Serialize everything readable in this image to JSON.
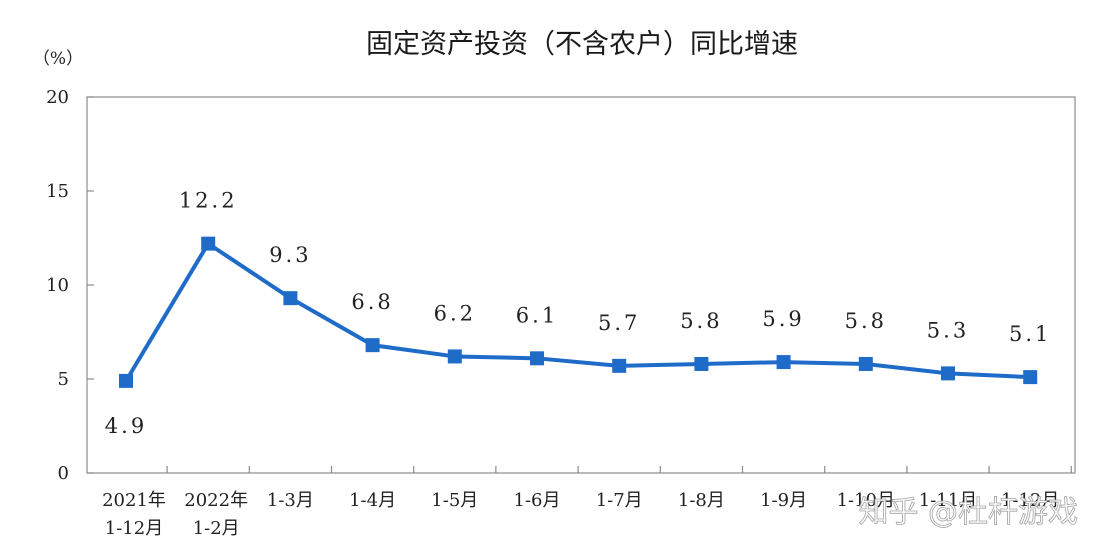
{
  "chart_data": {
    "type": "line",
    "title": "固定资产投资（不含农户）同比增速",
    "ylabel": "（%）",
    "ylim": [
      0,
      20
    ],
    "yticks": [
      0,
      5,
      10,
      15,
      20
    ],
    "categories": [
      [
        "2021年",
        "1-12月"
      ],
      [
        "2022年",
        "1-2月"
      ],
      [
        "1-3月"
      ],
      [
        "1-4月"
      ],
      [
        "1-5月"
      ],
      [
        "1-6月"
      ],
      [
        "1-7月"
      ],
      [
        "1-8月"
      ],
      [
        "1-9月"
      ],
      [
        "1-10月"
      ],
      [
        "1-11月"
      ],
      [
        "1-12月"
      ]
    ],
    "values": [
      4.9,
      12.2,
      9.3,
      6.8,
      6.2,
      6.1,
      5.7,
      5.8,
      5.9,
      5.8,
      5.3,
      5.1
    ],
    "data_labels": [
      "4.9",
      "12.2",
      "9.3",
      "6.8",
      "6.2",
      "6.1",
      "5.7",
      "5.8",
      "5.9",
      "5.8",
      "5.3",
      "5.1"
    ],
    "grid": false,
    "legend": "none",
    "line_color": "#1f6cc8",
    "marker": "square"
  },
  "watermark": "知乎 @杜杆游戏"
}
